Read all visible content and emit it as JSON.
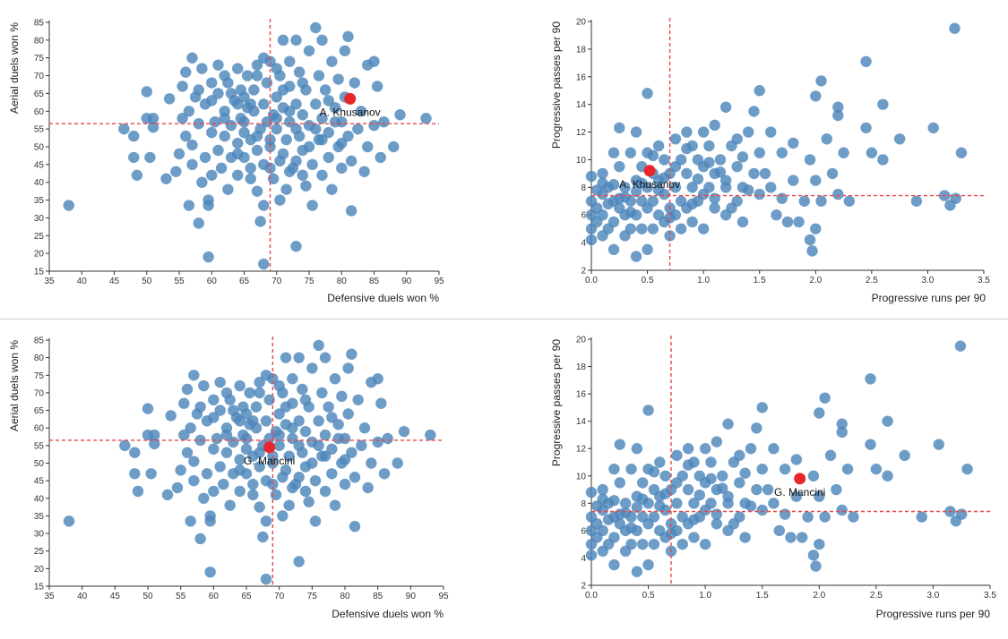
{
  "chart_data": [
    {
      "type": "scatter",
      "id": "tl",
      "xlabel": "Defensive duels won %",
      "ylabel": "Aerial duels won %",
      "xlim": [
        35,
        95
      ],
      "ylim": [
        15,
        85
      ],
      "xticks": [
        35,
        40,
        45,
        50,
        55,
        60,
        65,
        70,
        75,
        80,
        85,
        90,
        95
      ],
      "yticks": [
        15,
        20,
        25,
        30,
        35,
        40,
        45,
        50,
        55,
        60,
        65,
        70,
        75,
        80,
        85
      ],
      "median_x": 69,
      "median_y": 56.5,
      "highlight": {
        "label": "A. Khusanov",
        "x": 81.3,
        "y": 63.5
      },
      "series": "duels"
    },
    {
      "type": "scatter",
      "id": "tr",
      "xlabel": "Progressive runs per 90",
      "ylabel": "Progressive passes per 90",
      "xlim": [
        0,
        3.5
      ],
      "ylim": [
        2,
        20
      ],
      "xticks": [
        0.0,
        0.5,
        1.0,
        1.5,
        2.0,
        2.5,
        3.0,
        3.5
      ],
      "yticks": [
        2,
        4,
        6,
        8,
        10,
        12,
        14,
        16,
        18,
        20
      ],
      "median_x": 0.7,
      "median_y": 7.4,
      "highlight": {
        "label": "A. Khusanov",
        "x": 0.52,
        "y": 9.2
      },
      "series": "progressive"
    },
    {
      "type": "scatter",
      "id": "bl",
      "xlabel": "Defensive duels won %",
      "ylabel": "Aerial duels won %",
      "xlim": [
        35,
        95
      ],
      "ylim": [
        15,
        85
      ],
      "xticks": [
        35,
        40,
        45,
        50,
        55,
        60,
        65,
        70,
        75,
        80,
        85,
        90,
        95
      ],
      "yticks": [
        15,
        20,
        25,
        30,
        35,
        40,
        45,
        50,
        55,
        60,
        65,
        70,
        75,
        80,
        85
      ],
      "median_x": 69,
      "median_y": 56.5,
      "highlight": {
        "label": "G. Mancini",
        "x": 68.5,
        "y": 54.5
      },
      "series": "duels"
    },
    {
      "type": "scatter",
      "id": "br",
      "xlabel": "Progressive runs per 90",
      "ylabel": "Progressive passes per 90",
      "xlim": [
        0,
        3.5
      ],
      "ylim": [
        2,
        20
      ],
      "xticks": [
        0.0,
        0.5,
        1.0,
        1.5,
        2.0,
        2.5,
        3.0,
        3.5
      ],
      "yticks": [
        2,
        4,
        6,
        8,
        10,
        12,
        14,
        16,
        18,
        20
      ],
      "median_x": 0.7,
      "median_y": 7.4,
      "highlight": {
        "label": "G. Mancini",
        "x": 1.83,
        "y": 9.8
      },
      "series": "progressive"
    }
  ],
  "series_points": {
    "duels": [
      [
        38,
        33.5
      ],
      [
        46.5,
        55
      ],
      [
        48,
        53
      ],
      [
        48,
        47
      ],
      [
        48.5,
        42
      ],
      [
        50,
        65.5
      ],
      [
        50,
        58
      ],
      [
        50.5,
        47
      ],
      [
        51,
        55.5
      ],
      [
        51,
        58
      ],
      [
        53,
        41
      ],
      [
        53.5,
        63.5
      ],
      [
        54.5,
        43
      ],
      [
        55,
        48
      ],
      [
        55.5,
        58
      ],
      [
        55.5,
        67
      ],
      [
        56,
        71
      ],
      [
        56.5,
        60
      ],
      [
        56.5,
        33.5
      ],
      [
        57,
        50.5
      ],
      [
        57,
        75
      ],
      [
        57,
        45
      ],
      [
        57.5,
        64
      ],
      [
        58,
        56.5
      ],
      [
        58,
        28.5
      ],
      [
        58.5,
        40
      ],
      [
        58.5,
        72
      ],
      [
        59,
        62
      ],
      [
        59,
        47
      ],
      [
        59.5,
        33.5
      ],
      [
        59.5,
        35
      ],
      [
        59.5,
        19
      ],
      [
        60,
        68
      ],
      [
        60,
        54
      ],
      [
        60,
        42
      ],
      [
        60.5,
        57
      ],
      [
        61,
        65
      ],
      [
        61,
        49
      ],
      [
        61,
        73
      ],
      [
        61.5,
        44
      ],
      [
        62,
        60
      ],
      [
        62,
        53
      ],
      [
        62.5,
        38
      ],
      [
        62.5,
        68
      ],
      [
        63,
        47
      ],
      [
        63,
        56
      ],
      [
        63.5,
        63
      ],
      [
        64,
        51
      ],
      [
        64,
        72
      ],
      [
        64,
        42
      ],
      [
        64.5,
        58
      ],
      [
        64.5,
        66
      ],
      [
        65,
        54
      ],
      [
        65,
        47
      ],
      [
        65.5,
        61
      ],
      [
        65.5,
        70
      ],
      [
        66,
        44
      ],
      [
        66,
        52
      ],
      [
        66.5,
        60
      ],
      [
        66.5,
        66
      ],
      [
        67,
        37.5
      ],
      [
        67,
        49
      ],
      [
        67,
        73
      ],
      [
        67.5,
        55
      ],
      [
        67.5,
        29
      ],
      [
        68,
        62
      ],
      [
        68,
        45
      ],
      [
        68,
        33.5
      ],
      [
        68.5,
        57
      ],
      [
        68,
        17
      ],
      [
        68.5,
        68
      ],
      [
        69,
        50
      ],
      [
        69,
        74
      ],
      [
        69.5,
        41
      ],
      [
        69.5,
        59
      ],
      [
        70,
        64
      ],
      [
        70,
        55
      ],
      [
        70.5,
        46
      ],
      [
        70.5,
        70
      ],
      [
        70.5,
        35
      ],
      [
        71,
        80
      ],
      [
        71,
        61
      ],
      [
        71.5,
        52
      ],
      [
        71.5,
        38
      ],
      [
        72,
        74
      ],
      [
        72,
        57
      ],
      [
        72,
        67
      ],
      [
        72.5,
        44
      ],
      [
        73,
        80
      ],
      [
        73,
        62
      ],
      [
        73,
        22
      ],
      [
        73.5,
        53
      ],
      [
        73.5,
        71
      ],
      [
        74,
        49
      ],
      [
        74,
        59
      ],
      [
        74.5,
        39
      ],
      [
        74.5,
        66
      ],
      [
        75,
        77
      ],
      [
        75,
        56
      ],
      [
        75.5,
        45
      ],
      [
        75.5,
        33.5
      ],
      [
        76,
        83.5
      ],
      [
        76,
        62
      ],
      [
        76.5,
        52
      ],
      [
        76.5,
        70
      ],
      [
        77,
        42
      ],
      [
        77,
        58
      ],
      [
        77,
        80
      ],
      [
        77.5,
        66
      ],
      [
        78,
        47
      ],
      [
        78,
        54
      ],
      [
        78.5,
        74
      ],
      [
        78.5,
        38
      ],
      [
        79,
        61
      ],
      [
        79.5,
        50
      ],
      [
        79.5,
        69
      ],
      [
        80,
        44
      ],
      [
        80,
        57
      ],
      [
        80.5,
        64
      ],
      [
        80.5,
        77
      ],
      [
        81,
        81
      ],
      [
        81,
        53
      ],
      [
        81.5,
        46
      ],
      [
        81.5,
        32
      ],
      [
        82,
        68
      ],
      [
        82.5,
        55
      ],
      [
        83,
        60
      ],
      [
        83.5,
        43
      ],
      [
        84,
        50
      ],
      [
        84,
        73
      ],
      [
        85,
        74
      ],
      [
        85,
        56
      ],
      [
        85.5,
        67
      ],
      [
        86,
        47
      ],
      [
        86.5,
        57
      ],
      [
        88,
        50
      ],
      [
        89,
        59
      ],
      [
        93,
        58
      ],
      [
        62,
        70
      ],
      [
        63,
        65
      ],
      [
        66,
        62
      ],
      [
        67,
        70
      ],
      [
        70,
        72
      ],
      [
        71,
        66
      ],
      [
        74,
        68
      ],
      [
        74,
        42
      ],
      [
        76,
        55
      ],
      [
        78,
        63
      ],
      [
        79,
        57
      ],
      [
        65,
        57
      ],
      [
        69,
        52
      ],
      [
        71,
        48
      ],
      [
        73,
        46
      ],
      [
        62,
        58
      ],
      [
        64,
        48
      ],
      [
        66,
        41
      ],
      [
        72,
        60
      ],
      [
        75,
        50
      ],
      [
        68,
        75
      ],
      [
        60,
        63
      ],
      [
        58,
        66
      ],
      [
        56,
        53
      ],
      [
        64,
        62
      ],
      [
        70,
        58
      ],
      [
        73,
        55
      ],
      [
        77,
        52
      ],
      [
        80,
        51
      ],
      [
        72,
        43
      ],
      [
        69,
        44
      ],
      [
        67,
        53
      ],
      [
        65,
        64
      ]
    ],
    "progressive": [
      [
        0,
        8.8
      ],
      [
        0,
        7
      ],
      [
        0,
        6
      ],
      [
        0,
        5
      ],
      [
        0,
        4.2
      ],
      [
        0.05,
        6.5
      ],
      [
        0.05,
        5.5
      ],
      [
        0.1,
        9
      ],
      [
        0.1,
        7.5
      ],
      [
        0.1,
        6
      ],
      [
        0.1,
        4.5
      ],
      [
        0.15,
        8
      ],
      [
        0.15,
        5
      ],
      [
        0.2,
        10.5
      ],
      [
        0.2,
        7
      ],
      [
        0.2,
        5.5
      ],
      [
        0.2,
        3.5
      ],
      [
        0.25,
        12.3
      ],
      [
        0.25,
        9.5
      ],
      [
        0.25,
        6.5
      ],
      [
        0.3,
        8
      ],
      [
        0.3,
        6
      ],
      [
        0.3,
        4.5
      ],
      [
        0.35,
        10.5
      ],
      [
        0.35,
        7
      ],
      [
        0.35,
        5
      ],
      [
        0.4,
        12
      ],
      [
        0.4,
        8.5
      ],
      [
        0.4,
        6
      ],
      [
        0.4,
        3
      ],
      [
        0.45,
        9.5
      ],
      [
        0.45,
        7
      ],
      [
        0.45,
        5
      ],
      [
        0.5,
        14.8
      ],
      [
        0.5,
        10.5
      ],
      [
        0.5,
        8
      ],
      [
        0.5,
        6.5
      ],
      [
        0.5,
        3.5
      ],
      [
        0.55,
        9
      ],
      [
        0.55,
        7
      ],
      [
        0.55,
        5
      ],
      [
        0.6,
        11
      ],
      [
        0.6,
        8.5
      ],
      [
        0.6,
        6
      ],
      [
        0.65,
        10
      ],
      [
        0.65,
        7.5
      ],
      [
        0.65,
        5.5
      ],
      [
        0.7,
        9
      ],
      [
        0.7,
        6.5
      ],
      [
        0.7,
        4.5
      ],
      [
        0.75,
        11.5
      ],
      [
        0.75,
        8
      ],
      [
        0.75,
        6
      ],
      [
        0.8,
        10
      ],
      [
        0.8,
        7
      ],
      [
        0.8,
        5
      ],
      [
        0.85,
        12
      ],
      [
        0.85,
        9
      ],
      [
        0.85,
        6.5
      ],
      [
        0.9,
        11
      ],
      [
        0.9,
        8
      ],
      [
        0.9,
        5.5
      ],
      [
        0.95,
        10
      ],
      [
        0.95,
        7
      ],
      [
        1,
        12
      ],
      [
        1,
        9.5
      ],
      [
        1,
        7.5
      ],
      [
        1,
        5
      ],
      [
        1.05,
        11
      ],
      [
        1.05,
        8
      ],
      [
        1.1,
        12.5
      ],
      [
        1.1,
        9
      ],
      [
        1.1,
        6.5
      ],
      [
        1.15,
        10
      ],
      [
        1.2,
        13.8
      ],
      [
        1.2,
        8.5
      ],
      [
        1.2,
        6
      ],
      [
        1.25,
        11
      ],
      [
        1.3,
        9.5
      ],
      [
        1.3,
        7
      ],
      [
        1.35,
        8
      ],
      [
        1.35,
        5.5
      ],
      [
        1.4,
        12
      ],
      [
        1.45,
        13.5
      ],
      [
        1.45,
        9
      ],
      [
        1.5,
        15
      ],
      [
        1.5,
        10.5
      ],
      [
        1.5,
        7.5
      ],
      [
        1.55,
        9
      ],
      [
        1.6,
        12
      ],
      [
        1.6,
        8
      ],
      [
        1.65,
        6
      ],
      [
        1.7,
        10.5
      ],
      [
        1.75,
        5.5
      ],
      [
        1.8,
        11.2
      ],
      [
        1.8,
        8.5
      ],
      [
        1.85,
        5.5
      ],
      [
        1.9,
        7
      ],
      [
        1.95,
        10
      ],
      [
        1.95,
        4.2
      ],
      [
        1.97,
        3.4
      ],
      [
        2,
        14.6
      ],
      [
        2,
        8.5
      ],
      [
        2,
        5
      ],
      [
        2.05,
        15.7
      ],
      [
        2.05,
        7
      ],
      [
        2.1,
        11.5
      ],
      [
        2.15,
        9
      ],
      [
        2.2,
        13.8
      ],
      [
        2.2,
        7.5
      ],
      [
        2.2,
        13.2
      ],
      [
        2.25,
        10.5
      ],
      [
        2.3,
        7
      ],
      [
        2.45,
        17.1
      ],
      [
        2.45,
        12.3
      ],
      [
        2.5,
        10.5
      ],
      [
        2.6,
        14
      ],
      [
        2.6,
        10
      ],
      [
        2.75,
        11.5
      ],
      [
        2.9,
        7
      ],
      [
        3.05,
        12.3
      ],
      [
        3.15,
        7.4
      ],
      [
        3.2,
        6.7
      ],
      [
        3.24,
        19.5
      ],
      [
        3.25,
        7.2
      ],
      [
        3.3,
        10.5
      ],
      [
        1.25,
        6.5
      ],
      [
        0.15,
        6.8
      ],
      [
        0.3,
        7.3
      ],
      [
        0.6,
        7.8
      ],
      [
        0.9,
        6.8
      ],
      [
        1.1,
        7.2
      ],
      [
        0.35,
        6.2
      ],
      [
        0.7,
        5.8
      ],
      [
        0.2,
        8.2
      ],
      [
        1.4,
        7.8
      ],
      [
        0.45,
        8.3
      ],
      [
        1.7,
        7.2
      ],
      [
        1.2,
        8
      ],
      [
        0.75,
        9.5
      ],
      [
        0.55,
        10.3
      ],
      [
        0.85,
        10.8
      ],
      [
        1.05,
        9.8
      ],
      [
        1.35,
        10.2
      ],
      [
        0.65,
        8.7
      ],
      [
        0.95,
        8.6
      ],
      [
        1.15,
        9.1
      ],
      [
        1.3,
        11.5
      ],
      [
        0.4,
        7.7
      ],
      [
        0.25,
        7.2
      ],
      [
        0.1,
        8.3
      ],
      [
        0.05,
        7.8
      ]
    ]
  }
}
